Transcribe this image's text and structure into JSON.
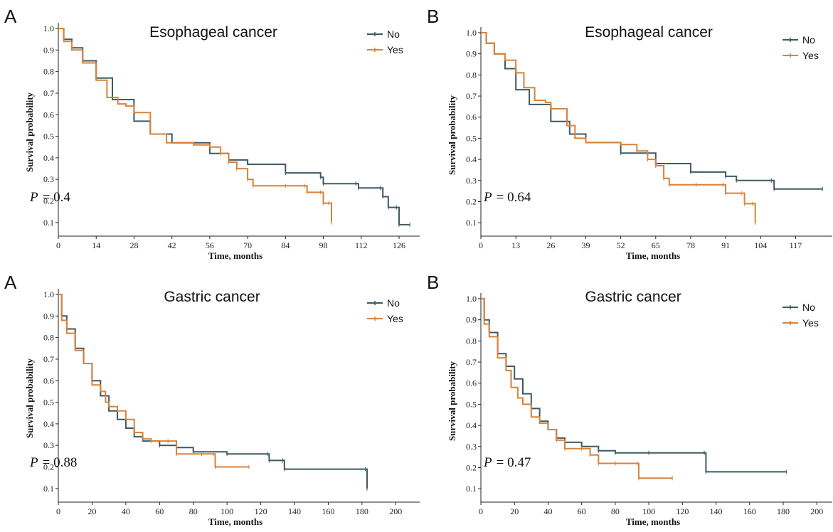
{
  "colors": {
    "No": "#3d5a63",
    "Yes": "#d9823a"
  },
  "chart_data": [
    {
      "type": "line",
      "panel": "A",
      "title": "Esophageal cancer",
      "xlabel": "Time, months",
      "ylabel": "Survival probability",
      "xlim": [
        0,
        131
      ],
      "ylim": [
        0.05,
        1.0
      ],
      "xticks": [
        0,
        14,
        28,
        42,
        56,
        70,
        84,
        98,
        112,
        126
      ],
      "yticks": [
        0.1,
        0.2,
        0.3,
        0.4,
        0.5,
        0.6,
        0.7,
        0.8,
        0.9,
        1.0
      ],
      "pvalue_label": "P",
      "pvalue_text": "= 0.4",
      "legend_position": "top-right",
      "series": [
        {
          "name": "No",
          "points": [
            [
              0,
              1.0
            ],
            [
              2,
              0.95
            ],
            [
              5,
              0.91
            ],
            [
              9,
              0.85
            ],
            [
              14,
              0.77
            ],
            [
              20,
              0.67
            ],
            [
              28,
              0.57
            ],
            [
              34,
              0.51
            ],
            [
              42,
              0.47
            ],
            [
              56,
              0.42
            ],
            [
              63,
              0.39
            ],
            [
              70,
              0.37
            ],
            [
              84,
              0.33
            ],
            [
              97,
              0.31
            ],
            [
              98,
              0.28
            ],
            [
              110,
              0.28
            ],
            [
              111,
              0.26
            ],
            [
              119,
              0.26
            ],
            [
              120,
              0.22
            ],
            [
              122,
              0.17
            ],
            [
              125,
              0.17
            ],
            [
              126,
              0.09
            ],
            [
              130,
              0.09
            ]
          ]
        },
        {
          "name": "Yes",
          "points": [
            [
              0,
              1.0
            ],
            [
              2,
              0.94
            ],
            [
              5,
              0.9
            ],
            [
              9,
              0.84
            ],
            [
              14,
              0.76
            ],
            [
              18,
              0.68
            ],
            [
              22,
              0.65
            ],
            [
              25,
              0.64
            ],
            [
              28,
              0.61
            ],
            [
              34,
              0.51
            ],
            [
              40,
              0.47
            ],
            [
              50,
              0.46
            ],
            [
              56,
              0.45
            ],
            [
              60,
              0.42
            ],
            [
              63,
              0.38
            ],
            [
              66,
              0.35
            ],
            [
              70,
              0.3
            ],
            [
              72,
              0.27
            ],
            [
              84,
              0.27
            ],
            [
              91,
              0.27
            ],
            [
              92,
              0.24
            ],
            [
              97,
              0.24
            ],
            [
              98,
              0.19
            ],
            [
              100,
              0.19
            ],
            [
              101,
              0.1
            ]
          ]
        }
      ]
    },
    {
      "type": "line",
      "panel": "B",
      "title": "Esophageal cancer",
      "xlabel": "Time, months",
      "ylabel": "Survival probability",
      "xlim": [
        0,
        128
      ],
      "ylim": [
        0.05,
        1.0
      ],
      "xticks": [
        0,
        13,
        26,
        39,
        52,
        65,
        78,
        91,
        104,
        117
      ],
      "yticks": [
        0.1,
        0.2,
        0.3,
        0.4,
        0.5,
        0.6,
        0.7,
        0.8,
        0.9,
        1.0
      ],
      "pvalue_label": "P",
      "pvalue_text": "= 0.64",
      "legend_position": "top-right",
      "series": [
        {
          "name": "No",
          "points": [
            [
              0,
              1.0
            ],
            [
              2,
              0.95
            ],
            [
              5,
              0.9
            ],
            [
              9,
              0.83
            ],
            [
              13,
              0.73
            ],
            [
              18,
              0.66
            ],
            [
              26,
              0.58
            ],
            [
              33,
              0.52
            ],
            [
              39,
              0.48
            ],
            [
              52,
              0.43
            ],
            [
              65,
              0.38
            ],
            [
              78,
              0.34
            ],
            [
              91,
              0.32
            ],
            [
              95,
              0.3
            ],
            [
              108,
              0.3
            ],
            [
              109,
              0.26
            ],
            [
              127,
              0.26
            ]
          ]
        },
        {
          "name": "Yes",
          "points": [
            [
              0,
              1.0
            ],
            [
              2,
              0.95
            ],
            [
              5,
              0.9
            ],
            [
              9,
              0.87
            ],
            [
              13,
              0.81
            ],
            [
              16,
              0.74
            ],
            [
              20,
              0.68
            ],
            [
              24,
              0.67
            ],
            [
              26,
              0.64
            ],
            [
              32,
              0.56
            ],
            [
              35,
              0.5
            ],
            [
              39,
              0.48
            ],
            [
              52,
              0.47
            ],
            [
              58,
              0.44
            ],
            [
              62,
              0.4
            ],
            [
              65,
              0.37
            ],
            [
              68,
              0.31
            ],
            [
              70,
              0.28
            ],
            [
              80,
              0.28
            ],
            [
              90,
              0.28
            ],
            [
              91,
              0.24
            ],
            [
              97,
              0.24
            ],
            [
              98,
              0.19
            ],
            [
              101,
              0.19
            ],
            [
              102,
              0.1
            ]
          ]
        }
      ]
    },
    {
      "type": "line",
      "panel": "A",
      "title": "Gastric cancer",
      "xlabel": "Time, months",
      "ylabel": "Survival probability",
      "xlim": [
        0,
        210
      ],
      "ylim": [
        0.05,
        1.0
      ],
      "xticks": [
        0,
        20,
        40,
        60,
        80,
        100,
        120,
        140,
        160,
        180,
        200
      ],
      "yticks": [
        0.1,
        0.2,
        0.3,
        0.4,
        0.5,
        0.6,
        0.7,
        0.8,
        0.9,
        1.0
      ],
      "pvalue_label": "P",
      "pvalue_text": "= 0.88",
      "legend_position": "top-right",
      "series": [
        {
          "name": "No",
          "points": [
            [
              0,
              1.0
            ],
            [
              2,
              0.9
            ],
            [
              5,
              0.84
            ],
            [
              10,
              0.75
            ],
            [
              15,
              0.68
            ],
            [
              20,
              0.6
            ],
            [
              25,
              0.53
            ],
            [
              30,
              0.46
            ],
            [
              35,
              0.42
            ],
            [
              40,
              0.38
            ],
            [
              45,
              0.34
            ],
            [
              50,
              0.32
            ],
            [
              60,
              0.3
            ],
            [
              70,
              0.29
            ],
            [
              80,
              0.27
            ],
            [
              100,
              0.26
            ],
            [
              124,
              0.26
            ],
            [
              125,
              0.23
            ],
            [
              133,
              0.23
            ],
            [
              134,
              0.19
            ],
            [
              182,
              0.19
            ],
            [
              183,
              0.1
            ]
          ]
        },
        {
          "name": "Yes",
          "points": [
            [
              0,
              1.0
            ],
            [
              2,
              0.88
            ],
            [
              5,
              0.82
            ],
            [
              10,
              0.74
            ],
            [
              15,
              0.68
            ],
            [
              20,
              0.58
            ],
            [
              25,
              0.55
            ],
            [
              28,
              0.5
            ],
            [
              30,
              0.48
            ],
            [
              35,
              0.46
            ],
            [
              40,
              0.42
            ],
            [
              45,
              0.36
            ],
            [
              50,
              0.33
            ],
            [
              55,
              0.32
            ],
            [
              65,
              0.32
            ],
            [
              70,
              0.26
            ],
            [
              85,
              0.26
            ],
            [
              92,
              0.26
            ],
            [
              93,
              0.2
            ],
            [
              113,
              0.2
            ]
          ]
        }
      ]
    },
    {
      "type": "line",
      "panel": "B",
      "title": "Gastric cancer",
      "xlabel": "Time, months",
      "ylabel": "Survival probability",
      "xlim": [
        0,
        205
      ],
      "ylim": [
        0.05,
        1.0
      ],
      "xticks": [
        0,
        20,
        40,
        60,
        80,
        100,
        120,
        140,
        160,
        180,
        200
      ],
      "yticks": [
        0.1,
        0.2,
        0.3,
        0.4,
        0.5,
        0.6,
        0.7,
        0.8,
        0.9,
        1.0
      ],
      "pvalue_label": "P",
      "pvalue_text": "= 0.47",
      "legend_position": "top-right",
      "series": [
        {
          "name": "No",
          "points": [
            [
              0,
              1.0
            ],
            [
              2,
              0.9
            ],
            [
              5,
              0.84
            ],
            [
              10,
              0.74
            ],
            [
              15,
              0.68
            ],
            [
              20,
              0.62
            ],
            [
              25,
              0.55
            ],
            [
              30,
              0.48
            ],
            [
              35,
              0.42
            ],
            [
              40,
              0.38
            ],
            [
              45,
              0.34
            ],
            [
              50,
              0.32
            ],
            [
              60,
              0.3
            ],
            [
              70,
              0.28
            ],
            [
              80,
              0.27
            ],
            [
              100,
              0.27
            ],
            [
              133,
              0.27
            ],
            [
              134,
              0.18
            ],
            [
              182,
              0.18
            ]
          ]
        },
        {
          "name": "Yes",
          "points": [
            [
              0,
              1.0
            ],
            [
              2,
              0.88
            ],
            [
              5,
              0.82
            ],
            [
              10,
              0.72
            ],
            [
              15,
              0.66
            ],
            [
              18,
              0.58
            ],
            [
              22,
              0.53
            ],
            [
              25,
              0.5
            ],
            [
              30,
              0.44
            ],
            [
              35,
              0.41
            ],
            [
              40,
              0.38
            ],
            [
              45,
              0.33
            ],
            [
              50,
              0.29
            ],
            [
              60,
              0.29
            ],
            [
              65,
              0.26
            ],
            [
              70,
              0.22
            ],
            [
              80,
              0.22
            ],
            [
              93,
              0.22
            ],
            [
              94,
              0.15
            ],
            [
              114,
              0.15
            ]
          ]
        }
      ]
    }
  ]
}
